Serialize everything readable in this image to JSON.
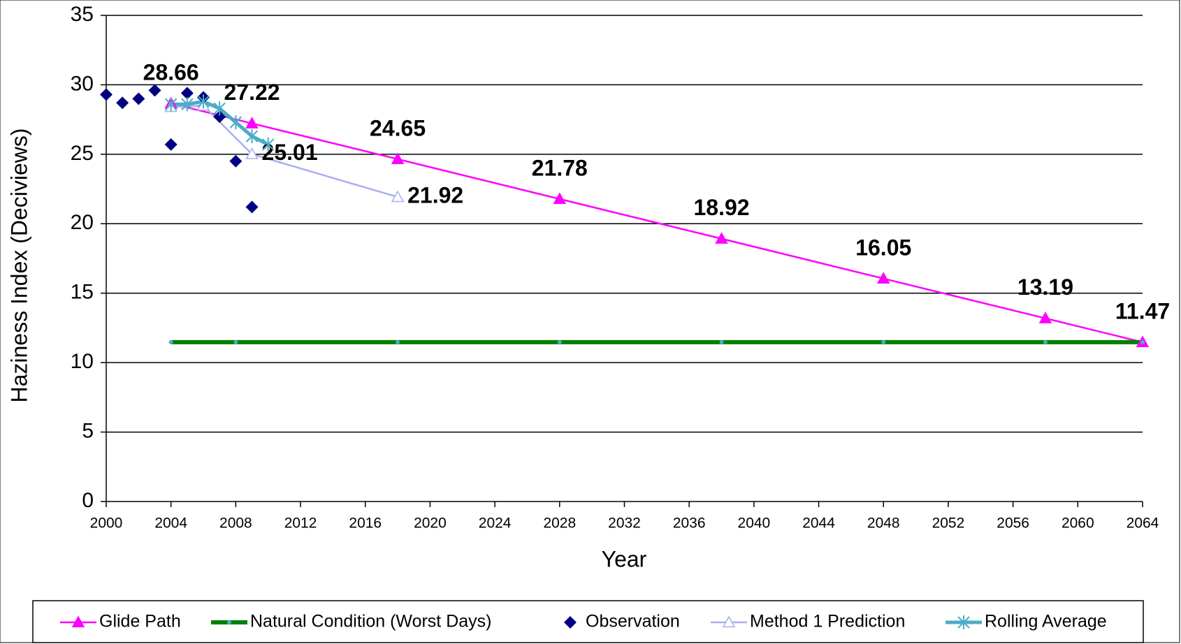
{
  "chart_data": {
    "type": "line",
    "x_label": "Year",
    "y_label": "Haziness Index (Deciviews)",
    "xlim": [
      2000,
      2064
    ],
    "xticks": [
      2000,
      2004,
      2008,
      2012,
      2016,
      2020,
      2024,
      2028,
      2032,
      2036,
      2040,
      2044,
      2048,
      2052,
      2056,
      2060,
      2064
    ],
    "ylim": [
      0,
      35
    ],
    "yticks": [
      0,
      5,
      10,
      15,
      20,
      25,
      30,
      35
    ],
    "grid": true,
    "legend": "bottom",
    "series": [
      {
        "name": "Glide Path",
        "color": "#ff00ff",
        "marker": "triangle",
        "line": true,
        "x": [
          2004,
          2009,
          2018,
          2028,
          2038,
          2048,
          2058,
          2064
        ],
        "values": [
          28.66,
          27.22,
          24.65,
          21.78,
          18.92,
          16.05,
          13.19,
          11.47
        ],
        "label_color": "#000000"
      },
      {
        "name": "Natural Condition (Worst Days)",
        "color": "#008000",
        "marker": "dot",
        "line": true,
        "line_width": 6,
        "x": [
          2004,
          2008,
          2018,
          2028,
          2038,
          2048,
          2058,
          2064
        ],
        "values": [
          11.47,
          11.47,
          11.47,
          11.47,
          11.47,
          11.47,
          11.47,
          11.47
        ]
      },
      {
        "name": "Observation",
        "color": "#000080",
        "marker": "diamond",
        "line": false,
        "x": [
          2000,
          2001,
          2002,
          2003,
          2004,
          2005,
          2006,
          2007,
          2008,
          2009
        ],
        "values": [
          29.3,
          28.7,
          29.0,
          29.6,
          25.7,
          29.4,
          29.1,
          27.7,
          24.5,
          21.2
        ]
      },
      {
        "name": "Method 1 Prediction",
        "color": "#a9aef0",
        "marker": "open-triangle",
        "line": true,
        "x": [
          2004,
          2006,
          2009,
          2018
        ],
        "values": [
          28.4,
          28.5,
          25.01,
          21.92
        ],
        "value_labels": [
          null,
          null,
          "25.01",
          "21.92"
        ],
        "label_color": "#000080"
      },
      {
        "name": "Rolling Average",
        "color": "#4bacc6",
        "marker": "star",
        "line": true,
        "line_width": 5,
        "x": [
          2004,
          2005,
          2006,
          2007,
          2008,
          2009,
          2010
        ],
        "values": [
          28.6,
          28.6,
          28.8,
          28.3,
          27.3,
          26.3,
          25.7
        ]
      }
    ]
  }
}
